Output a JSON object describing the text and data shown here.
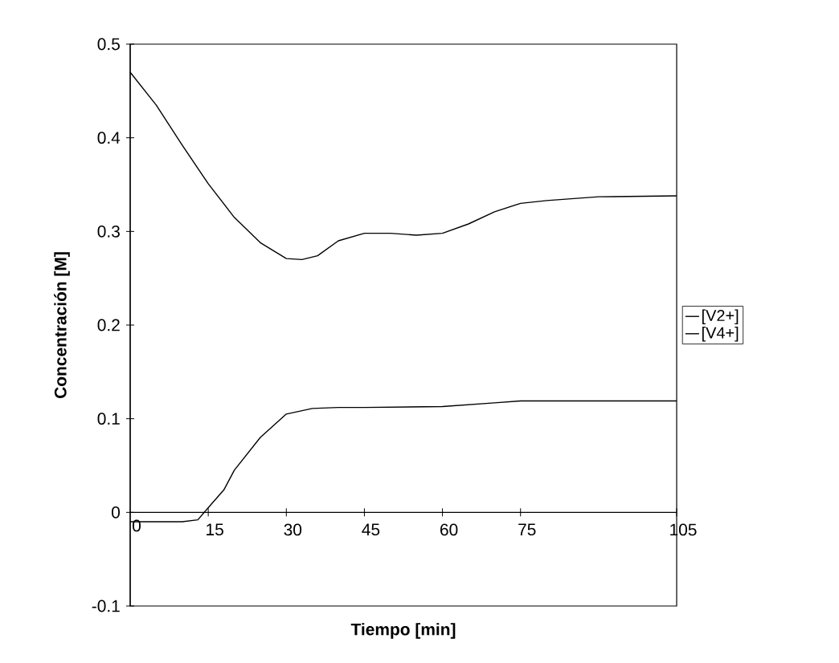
{
  "chart_data": {
    "type": "line",
    "xlabel": "Tiempo [min]",
    "ylabel": "Concentración [M]",
    "xlim": [
      0,
      105
    ],
    "ylim": [
      -0.1,
      0.5
    ],
    "xticks": [
      0,
      15,
      30,
      45,
      60,
      75,
      105
    ],
    "yticks": [
      -0.1,
      0,
      0.1,
      0.2,
      0.3,
      0.4,
      0.5
    ],
    "legend": "right",
    "grid": false,
    "marker": "none",
    "line_style": "solid",
    "series": [
      {
        "name": "[V2+]",
        "color": "#000000",
        "x": [
          0,
          5,
          10,
          13,
          15,
          18,
          20,
          25,
          30,
          35,
          40,
          45,
          60,
          70,
          75,
          90,
          105
        ],
        "values": [
          -0.01,
          -0.01,
          -0.01,
          -0.008,
          0.005,
          0.024,
          0.045,
          0.08,
          0.105,
          0.111,
          0.112,
          0.112,
          0.113,
          0.117,
          0.119,
          0.119,
          0.119
        ]
      },
      {
        "name": "[V4+]",
        "color": "#000000",
        "x": [
          0,
          5,
          10,
          15,
          20,
          25,
          30,
          33,
          36,
          40,
          45,
          50,
          55,
          60,
          65,
          70,
          75,
          80,
          90,
          105
        ],
        "values": [
          0.47,
          0.435,
          0.392,
          0.351,
          0.315,
          0.288,
          0.271,
          0.27,
          0.274,
          0.29,
          0.298,
          0.298,
          0.296,
          0.298,
          0.308,
          0.321,
          0.33,
          0.333,
          0.337,
          0.338
        ]
      }
    ]
  }
}
